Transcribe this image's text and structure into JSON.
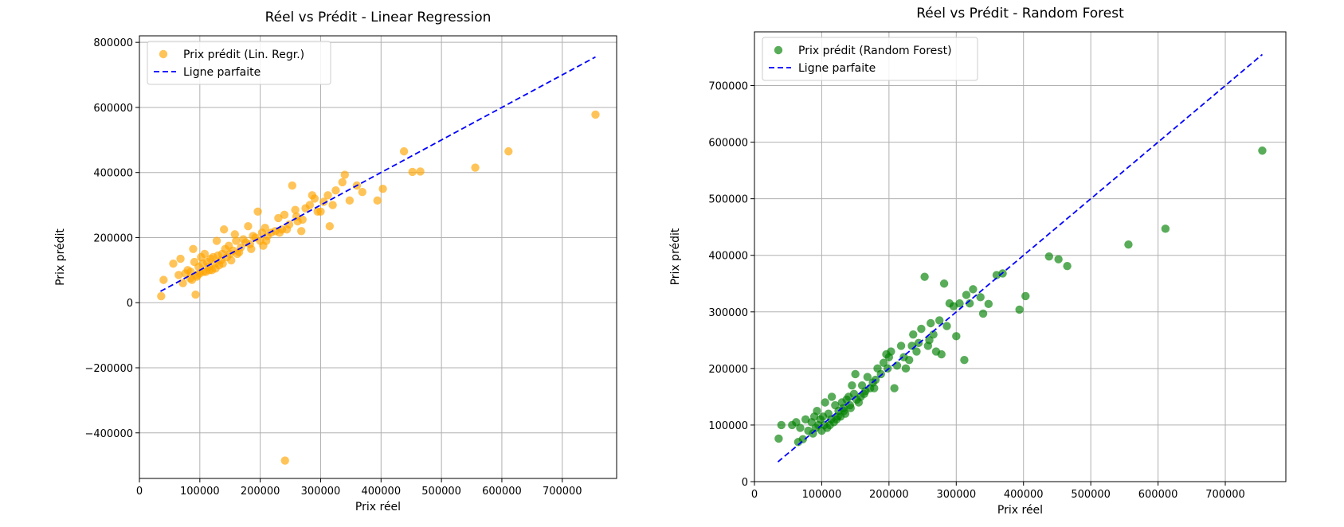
{
  "chart_data": [
    {
      "id": "lr",
      "type": "scatter",
      "title": "Réel vs Prédit - Linear Regression",
      "xlabel": "Prix réel",
      "ylabel": "Prix prédit",
      "xlim": [
        0,
        790000
      ],
      "ylim": [
        -540000,
        820000
      ],
      "xticks": [
        0,
        100000,
        200000,
        300000,
        400000,
        500000,
        600000,
        700000
      ],
      "xtick_labels": [
        "0",
        "100000",
        "200000",
        "300000",
        "400000",
        "500000",
        "600000",
        "700000"
      ],
      "yticks": [
        -400000,
        -200000,
        0,
        200000,
        400000,
        600000,
        800000
      ],
      "ytick_labels": [
        "−400000",
        "−200000",
        "0",
        "200000",
        "400000",
        "600000",
        "800000"
      ],
      "grid": true,
      "legend_position": "top-left",
      "scatter_name": "Prix prédit (Lin. Regr.)",
      "scatter_color": "#ffa500",
      "scatter_opacity": 0.65,
      "line_name": "Ligne parfaite",
      "line_color": "#0000ff",
      "line": [
        [
          34900,
          34900
        ],
        [
          755000,
          755000
        ]
      ],
      "points": [
        [
          755000,
          578000
        ],
        [
          611000,
          465000
        ],
        [
          556000,
          415000
        ],
        [
          465000,
          403000
        ],
        [
          452000,
          402000
        ],
        [
          438000,
          465000
        ],
        [
          403000,
          350000
        ],
        [
          394000,
          314000
        ],
        [
          369000,
          340000
        ],
        [
          360000,
          360000
        ],
        [
          348000,
          314000
        ],
        [
          340000,
          393000
        ],
        [
          336000,
          370000
        ],
        [
          325000,
          345000
        ],
        [
          315000,
          235000
        ],
        [
          312000,
          330000
        ],
        [
          305000,
          310000
        ],
        [
          300000,
          280000
        ],
        [
          290000,
          320000
        ],
        [
          282000,
          300000
        ],
        [
          275000,
          290000
        ],
        [
          270000,
          255000
        ],
        [
          262000,
          250000
        ],
        [
          258000,
          285000
        ],
        [
          253000,
          360000
        ],
        [
          248000,
          240000
        ],
        [
          241000,
          -485000
        ],
        [
          240000,
          270000
        ],
        [
          236000,
          225000
        ],
        [
          230000,
          260000
        ],
        [
          225000,
          220000
        ],
        [
          218000,
          215000
        ],
        [
          212000,
          205000
        ],
        [
          208000,
          230000
        ],
        [
          203000,
          215000
        ],
        [
          200000,
          190000
        ],
        [
          196000,
          280000
        ],
        [
          192000,
          200000
        ],
        [
          188000,
          205000
        ],
        [
          183000,
          180000
        ],
        [
          180000,
          235000
        ],
        [
          176000,
          185000
        ],
        [
          172000,
          195000
        ],
        [
          168000,
          170000
        ],
        [
          165000,
          155000
        ],
        [
          160000,
          190000
        ],
        [
          158000,
          210000
        ],
        [
          155000,
          160000
        ],
        [
          150000,
          150000
        ],
        [
          148000,
          175000
        ],
        [
          145000,
          140000
        ],
        [
          142000,
          165000
        ],
        [
          140000,
          225000
        ],
        [
          137000,
          150000
        ],
        [
          135000,
          130000
        ],
        [
          132000,
          115000
        ],
        [
          130000,
          145000
        ],
        [
          128000,
          190000
        ],
        [
          125000,
          120000
        ],
        [
          122000,
          140000
        ],
        [
          120000,
          100000
        ],
        [
          118000,
          135000
        ],
        [
          115000,
          110000
        ],
        [
          112000,
          125000
        ],
        [
          110000,
          95000
        ],
        [
          108000,
          150000
        ],
        [
          105000,
          120000
        ],
        [
          102000,
          140000
        ],
        [
          100000,
          90000
        ],
        [
          98000,
          110000
        ],
        [
          95000,
          80000
        ],
        [
          93000,
          25000
        ],
        [
          91000,
          125000
        ],
        [
          89000,
          165000
        ],
        [
          87000,
          70000
        ],
        [
          85000,
          95000
        ],
        [
          80000,
          100000
        ],
        [
          76000,
          90000
        ],
        [
          72000,
          60000
        ],
        [
          68000,
          135000
        ],
        [
          65000,
          85000
        ],
        [
          56000,
          120000
        ],
        [
          40000,
          70000
        ],
        [
          36000,
          20000
        ],
        [
          260000,
          265000
        ],
        [
          244000,
          225000
        ],
        [
          210000,
          190000
        ],
        [
          185000,
          165000
        ],
        [
          162000,
          150000
        ],
        [
          152000,
          130000
        ],
        [
          138000,
          120000
        ],
        [
          126000,
          105000
        ],
        [
          116000,
          100000
        ],
        [
          106000,
          95000
        ],
        [
          96000,
          85000
        ],
        [
          84000,
          75000
        ],
        [
          286000,
          330000
        ],
        [
          295000,
          280000
        ],
        [
          320000,
          300000
        ],
        [
          268000,
          220000
        ],
        [
          232000,
          215000
        ],
        [
          205000,
          175000
        ]
      ]
    },
    {
      "id": "rf",
      "type": "scatter",
      "title": "Réel vs Prédit - Random Forest",
      "xlabel": "Prix réel",
      "ylabel": "Prix prédit",
      "xlim": [
        0,
        790000
      ],
      "ylim": [
        0,
        795000
      ],
      "xticks": [
        0,
        100000,
        200000,
        300000,
        400000,
        500000,
        600000,
        700000
      ],
      "xtick_labels": [
        "0",
        "100000",
        "200000",
        "300000",
        "400000",
        "500000",
        "600000",
        "700000"
      ],
      "yticks": [
        0,
        100000,
        200000,
        300000,
        400000,
        500000,
        600000,
        700000
      ],
      "ytick_labels": [
        "0",
        "100000",
        "200000",
        "300000",
        "400000",
        "500000",
        "600000",
        "700000"
      ],
      "grid": true,
      "legend_position": "top-left",
      "scatter_name": "Prix prédit (Random Forest)",
      "scatter_color": "#008000",
      "scatter_opacity": 0.65,
      "line_name": "Ligne parfaite",
      "line_color": "#0000ff",
      "line": [
        [
          34900,
          34900
        ],
        [
          755000,
          755000
        ]
      ],
      "points": [
        [
          755000,
          585000
        ],
        [
          611000,
          447000
        ],
        [
          556000,
          419000
        ],
        [
          465000,
          381000
        ],
        [
          452000,
          393000
        ],
        [
          438000,
          398000
        ],
        [
          403000,
          328000
        ],
        [
          394000,
          304000
        ],
        [
          369000,
          368000
        ],
        [
          360000,
          365000
        ],
        [
          348000,
          314000
        ],
        [
          340000,
          297000
        ],
        [
          336000,
          326000
        ],
        [
          325000,
          340000
        ],
        [
          315000,
          330000
        ],
        [
          312000,
          215000
        ],
        [
          305000,
          315000
        ],
        [
          300000,
          257000
        ],
        [
          290000,
          315000
        ],
        [
          282000,
          350000
        ],
        [
          275000,
          285000
        ],
        [
          270000,
          230000
        ],
        [
          262000,
          280000
        ],
        [
          258000,
          240000
        ],
        [
          253000,
          362000
        ],
        [
          248000,
          270000
        ],
        [
          241000,
          230000
        ],
        [
          236000,
          260000
        ],
        [
          230000,
          215000
        ],
        [
          225000,
          200000
        ],
        [
          218000,
          240000
        ],
        [
          212000,
          205000
        ],
        [
          208000,
          165000
        ],
        [
          203000,
          230000
        ],
        [
          200000,
          220000
        ],
        [
          196000,
          225000
        ],
        [
          192000,
          210000
        ],
        [
          188000,
          190000
        ],
        [
          183000,
          200000
        ],
        [
          180000,
          180000
        ],
        [
          176000,
          175000
        ],
        [
          172000,
          165000
        ],
        [
          168000,
          185000
        ],
        [
          165000,
          160000
        ],
        [
          160000,
          170000
        ],
        [
          158000,
          150000
        ],
        [
          155000,
          140000
        ],
        [
          150000,
          190000
        ],
        [
          148000,
          155000
        ],
        [
          145000,
          170000
        ],
        [
          142000,
          135000
        ],
        [
          140000,
          150000
        ],
        [
          137000,
          145000
        ],
        [
          135000,
          120000
        ],
        [
          132000,
          130000
        ],
        [
          130000,
          140000
        ],
        [
          128000,
          115000
        ],
        [
          125000,
          125000
        ],
        [
          122000,
          110000
        ],
        [
          120000,
          135000
        ],
        [
          118000,
          105000
        ],
        [
          115000,
          150000
        ],
        [
          112000,
          100000
        ],
        [
          110000,
          120000
        ],
        [
          108000,
          95000
        ],
        [
          105000,
          140000
        ],
        [
          102000,
          115000
        ],
        [
          100000,
          90000
        ],
        [
          98000,
          110000
        ],
        [
          95000,
          100000
        ],
        [
          93000,
          125000
        ],
        [
          91000,
          95000
        ],
        [
          89000,
          115000
        ],
        [
          87000,
          85000
        ],
        [
          85000,
          105000
        ],
        [
          80000,
          90000
        ],
        [
          76000,
          110000
        ],
        [
          72000,
          75000
        ],
        [
          68000,
          95000
        ],
        [
          65000,
          70000
        ],
        [
          62000,
          105000
        ],
        [
          56000,
          100000
        ],
        [
          40000,
          100000
        ],
        [
          36000,
          76000
        ],
        [
          320000,
          315000
        ],
        [
          286000,
          275000
        ],
        [
          266000,
          260000
        ],
        [
          244000,
          245000
        ],
        [
          222000,
          220000
        ],
        [
          198000,
          200000
        ],
        [
          178000,
          165000
        ],
        [
          163000,
          155000
        ],
        [
          152000,
          145000
        ],
        [
          143000,
          130000
        ],
        [
          133000,
          125000
        ],
        [
          124000,
          115000
        ],
        [
          114000,
          110000
        ],
        [
          104000,
          100000
        ],
        [
          296000,
          310000
        ],
        [
          278000,
          225000
        ],
        [
          260000,
          250000
        ],
        [
          234000,
          240000
        ]
      ]
    }
  ]
}
